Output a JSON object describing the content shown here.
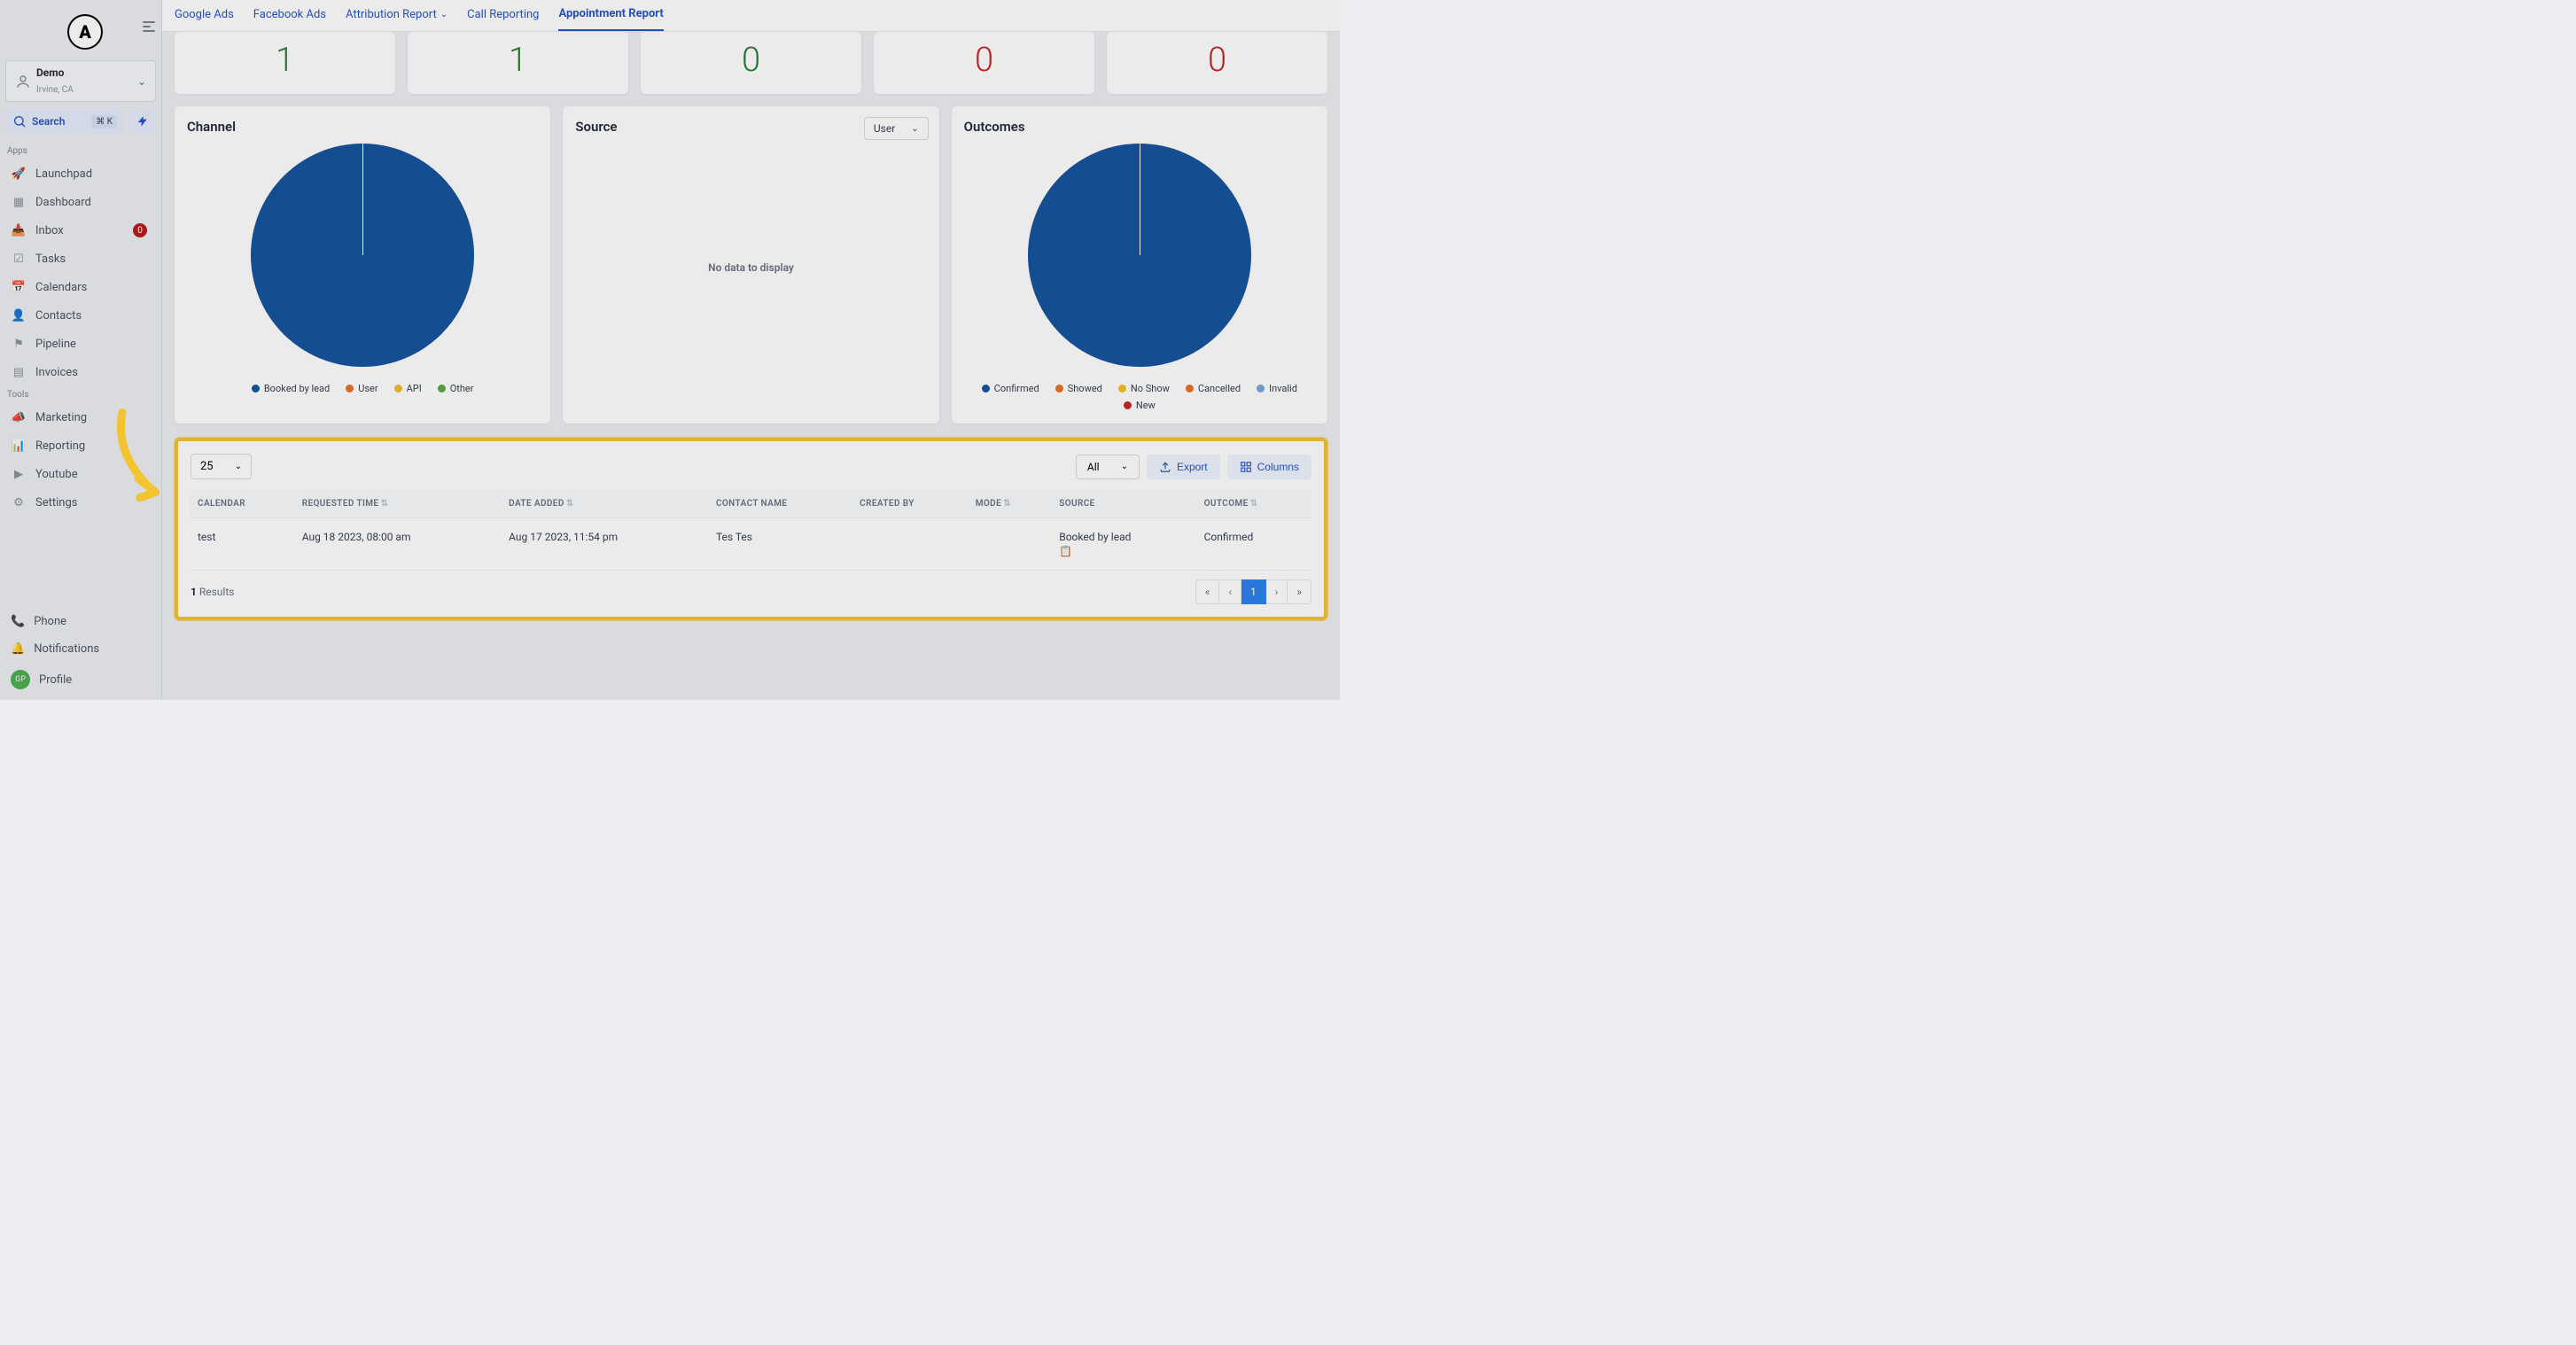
{
  "logo_letter": "A",
  "account": {
    "name": "Demo",
    "location": "Irvine, CA"
  },
  "search": {
    "label": "Search",
    "kbd": "⌘ K"
  },
  "sections": {
    "apps": "Apps",
    "tools": "Tools"
  },
  "nav": {
    "launchpad": "Launchpad",
    "dashboard": "Dashboard",
    "inbox": "Inbox",
    "inbox_badge": "0",
    "tasks": "Tasks",
    "calendars": "Calendars",
    "contacts": "Contacts",
    "pipeline": "Pipeline",
    "invoices": "Invoices",
    "marketing": "Marketing",
    "reporting": "Reporting",
    "youtube": "Youtube",
    "settings": "Settings",
    "phone": "Phone",
    "notifications": "Notifications",
    "profile": "Profile",
    "profile_initials": "GP"
  },
  "tabs": {
    "google": "Google Ads",
    "facebook": "Facebook Ads",
    "attribution": "Attribution Report",
    "call": "Call Reporting",
    "appointment": "Appointment Report"
  },
  "stats": [
    {
      "value": "1",
      "color": "#2e7d32"
    },
    {
      "value": "1",
      "color": "#2e7d32"
    },
    {
      "value": "0",
      "color": "#2e7d32"
    },
    {
      "value": "0",
      "color": "#c62828"
    },
    {
      "value": "0",
      "color": "#c62828"
    }
  ],
  "channel": {
    "title": "Channel",
    "pie_color": "#17549e",
    "legend": [
      {
        "label": "Booked by lead",
        "color": "#17549e"
      },
      {
        "label": "User",
        "color": "#ea7125"
      },
      {
        "label": "API",
        "color": "#f2be2b"
      },
      {
        "label": "Other",
        "color": "#5ea641"
      }
    ]
  },
  "source": {
    "title": "Source",
    "dropdown": "User",
    "no_data": "No data to display"
  },
  "outcomes": {
    "title": "Outcomes",
    "pie_color": "#17549e",
    "legend": [
      {
        "label": "Confirmed",
        "color": "#17549e"
      },
      {
        "label": "Showed",
        "color": "#ea7125"
      },
      {
        "label": "No Show",
        "color": "#f2be2b"
      },
      {
        "label": "Cancelled",
        "color": "#ea7125"
      },
      {
        "label": "Invalid",
        "color": "#7aa6de"
      },
      {
        "label": "New",
        "color": "#c62828"
      }
    ]
  },
  "table": {
    "page_size": "25",
    "filter": "All",
    "export": "Export",
    "columns_btn": "Columns",
    "headers": {
      "calendar": "CALENDAR",
      "requested": "REQUESTED TIME",
      "added": "DATE ADDED",
      "contact": "CONTACT NAME",
      "created": "CREATED BY",
      "mode": "MODE",
      "source": "SOURCE",
      "outcome": "OUTCOME"
    },
    "rows": [
      {
        "calendar": "test",
        "requested": "Aug 18 2023, 08:00 am",
        "added": "Aug 17 2023, 11:54 pm",
        "contact": "Tes Tes",
        "created": "",
        "mode": "",
        "source": "Booked by lead",
        "outcome": "Confirmed"
      }
    ],
    "results_count": "1",
    "results_label": "Results",
    "pager": {
      "first": "«",
      "prev": "‹",
      "page": "1",
      "next": "›",
      "last": "»"
    }
  },
  "highlight": {
    "arrow_color": "#f4c430"
  }
}
